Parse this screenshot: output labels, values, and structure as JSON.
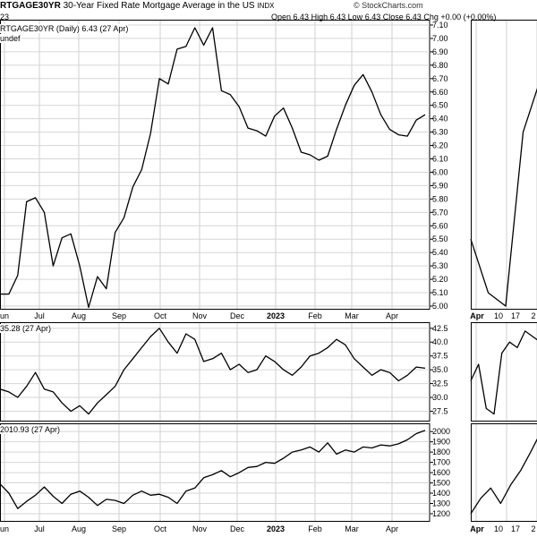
{
  "header": {
    "symbol": "RTGAGE30YR",
    "description": "30-Year Fixed Rate Mortgage Average in the US",
    "exchange": "INDX",
    "brand": "© StockCharts.com",
    "open_label": "Open",
    "open_value": "6.43",
    "high_label": "High",
    "high_value": "6.43",
    "low_label": "Low",
    "low_value": "6.43",
    "close_label": "Close",
    "close_value": "6.43",
    "chg_label": "Chg",
    "chg_value": "+0.00 (+0.00%)",
    "date_fragment": "23"
  },
  "legends": {
    "main": "RTGAGE30YR (Daily) 6.43 (27 Apr)",
    "main_sub": "undef",
    "panel2": "35.28 (27 Apr)",
    "panel3": "2010.93 (27 Apr)"
  },
  "chart_data": [
    {
      "type": "line",
      "panel": "main",
      "title": "30-Year Fixed Rate Mortgage Average in the US",
      "x_tick_labels": [
        "un",
        "Jul",
        "Aug",
        "Sep",
        "Oct",
        "Nov",
        "Dec",
        "2023",
        "Feb",
        "Mar",
        "Apr"
      ],
      "y_tick_labels": [
        "5.00",
        "5.10",
        "5.20",
        "5.30",
        "5.40",
        "5.50",
        "5.60",
        "5.70",
        "5.80",
        "5.90",
        "6.00",
        "6.10",
        "6.20",
        "6.30",
        "6.40",
        "6.50",
        "6.60",
        "6.70",
        "6.80",
        "6.90",
        "7.00",
        "7.10"
      ],
      "ylim": [
        4.98,
        7.14
      ],
      "grid": true,
      "series": [
        {
          "values": [
            5.09,
            5.09,
            5.23,
            5.78,
            5.81,
            5.7,
            5.3,
            5.51,
            5.54,
            5.3,
            4.99,
            5.22,
            5.13,
            5.55,
            5.66,
            5.89,
            6.02,
            6.29,
            6.7,
            6.66,
            6.92,
            6.94,
            7.08,
            6.95,
            7.08,
            6.61,
            6.58,
            6.49,
            6.33,
            6.31,
            6.27,
            6.42,
            6.48,
            6.33,
            6.15,
            6.13,
            6.09,
            6.12,
            6.32,
            6.5,
            6.65,
            6.73,
            6.6,
            6.43,
            6.32,
            6.28,
            6.27,
            6.39,
            6.43
          ]
        }
      ]
    },
    {
      "type": "line",
      "panel": "second",
      "y_tick_labels": [
        "27.5",
        "30.0",
        "32.5",
        "35.0",
        "37.5",
        "40.0",
        "42.5"
      ],
      "ylim": [
        25.8,
        43.6
      ],
      "grid": true,
      "series": [
        {
          "values": [
            31.5,
            31.0,
            30.0,
            32.0,
            34.5,
            31.5,
            31.0,
            29.0,
            27.5,
            28.5,
            27.0,
            29.0,
            30.5,
            32.0,
            35.0,
            37.0,
            39.0,
            41.0,
            42.5,
            40.0,
            38.0,
            41.5,
            40.5,
            36.5,
            37.0,
            38.0,
            35.0,
            36.0,
            34.5,
            35.0,
            37.5,
            36.5,
            35.0,
            34.0,
            35.5,
            37.5,
            38.0,
            39.0,
            40.5,
            39.5,
            37.0,
            35.5,
            34.0,
            35.0,
            34.5,
            33.0,
            34.0,
            35.5,
            35.28
          ]
        }
      ]
    },
    {
      "type": "line",
      "panel": "third",
      "y_tick_labels": [
        "1200",
        "1300",
        "1400",
        "1500",
        "1600",
        "1700",
        "1800",
        "1900",
        "2000"
      ],
      "ylim": [
        1130,
        2080
      ],
      "grid": true,
      "series": [
        {
          "values": [
            1490,
            1400,
            1250,
            1320,
            1380,
            1460,
            1370,
            1300,
            1390,
            1420,
            1360,
            1280,
            1340,
            1330,
            1300,
            1380,
            1420,
            1380,
            1390,
            1360,
            1300,
            1420,
            1450,
            1550,
            1580,
            1620,
            1560,
            1600,
            1650,
            1660,
            1700,
            1690,
            1740,
            1800,
            1820,
            1850,
            1800,
            1890,
            1780,
            1820,
            1800,
            1850,
            1840,
            1870,
            1860,
            1880,
            1920,
            1980,
            2010.93
          ]
        }
      ]
    },
    {
      "type": "line",
      "panel": "right-main",
      "x_tick_labels": [
        "Apr",
        "10",
        "17",
        "2"
      ],
      "series": [
        {
          "values": [
            5.5,
            5.1,
            5.0,
            6.3,
            6.7
          ]
        }
      ]
    },
    {
      "type": "line",
      "panel": "right-second",
      "series": [
        {
          "values": [
            33,
            36,
            28,
            27,
            38,
            40,
            39,
            42,
            41,
            40
          ]
        }
      ]
    },
    {
      "type": "line",
      "panel": "right-third",
      "series": [
        {
          "values": [
            1200,
            1350,
            1450,
            1300,
            1480,
            1620,
            1800,
            1990
          ]
        }
      ]
    }
  ]
}
